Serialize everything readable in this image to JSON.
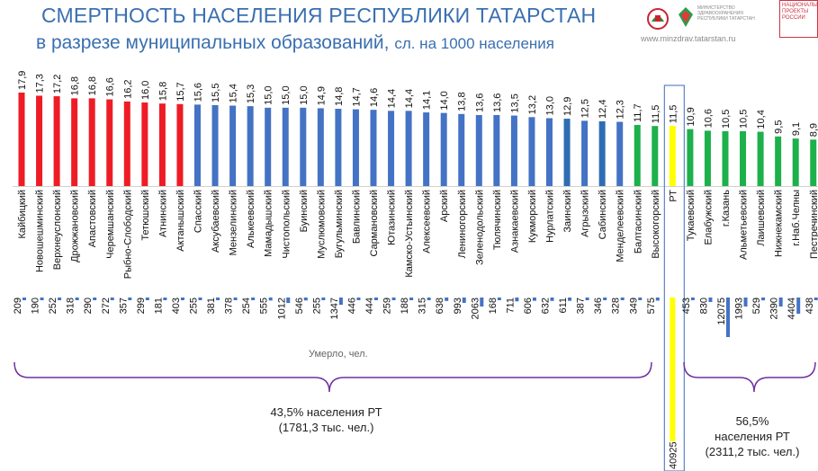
{
  "title": "СМЕРТНОСТЬ НАСЕЛЕНИЯ РЕСПУБЛИКИ ТАТАРСТАН",
  "subtitle_main": "в разрезе  муниципальных образований, ",
  "subtitle_unit": "сл. на 1000 населения",
  "website": "www.minzdrav.tatarstan.ru",
  "logos": {
    "ministry_text": "МИНИСТЕРСТВО ЗДРАВООХРАНЕНИЯ РЕСПУБЛИКИ ТАТАРСТАН",
    "project_text": "НАЦИОНАЛЬНЫЕ ПРОЕКТЫ РОССИИ"
  },
  "deaths_label": "Умерло, чел.",
  "group_left_note": [
    "43,5% населения РТ",
    "(1781,3 тыс. чел.)"
  ],
  "group_right_note": [
    "56,5%",
    "населения РТ",
    "(2311,2 тыс. чел.)"
  ],
  "colors": {
    "red": "#ee1c25",
    "blue": "#4472c4",
    "darkblue": "#2e6db4",
    "green": "#1db04b",
    "yellow": "#ffff00",
    "deaths_bar": "#4472c4",
    "deaths_rt": "#ffff00",
    "title": "#3a6fb0",
    "brace": "#7030a0"
  },
  "chart_data": {
    "type": "bar",
    "title": "СМЕРТНОСТЬ НАСЕЛЕНИЯ РЕСПУБЛИКИ ТАТАРСТАН",
    "ylabel": "сл. на 1000 населения",
    "ylim": [
      0,
      18
    ],
    "categories": [
      "Кайбицкий",
      "Новошешминский",
      "Верхнеуслонский",
      "Дрожжановский",
      "Апастовский",
      "Черемшанский",
      "Рыбно-Слободский",
      "Тетюшский",
      "Атнинский",
      "Актанышский",
      "Спасский",
      "Аксубаевский",
      "Мензелинский",
      "Алькеевский",
      "Мамадышский",
      "Чистопольский",
      "Буинский",
      "Муслюмовский",
      "Бугульминский",
      "Бавлинский",
      "Сармановский",
      "Ютазинский",
      "Камско-Устьинский",
      "Алексеевский",
      "Арский",
      "Лениногорский",
      "Зеленодольский",
      "Тюлячинский",
      "Азнакаевский",
      "Кукморский",
      "Нурлатский",
      "Заинский",
      "Агрызский",
      "Сабинский",
      "Менделеевский",
      "Балтасинский",
      "Высокогорский",
      "РТ",
      "Тукаевский",
      "Елабужский",
      "г.Казань",
      "Альметьевский",
      "Лаишевский",
      "Нижнекамский",
      "г.Наб.Челны",
      "Пестречинский"
    ],
    "series": [
      {
        "name": "Смертность, сл. на 1000 населения",
        "values": [
          "17,9",
          "17,3",
          "17,2",
          "16,8",
          "16,8",
          "16,6",
          "16,2",
          "16,0",
          "15,8",
          "15,7",
          "15,6",
          "15,5",
          "15,4",
          "15,3",
          "15,0",
          "15,0",
          "15,0",
          "14,9",
          "14,8",
          "14,7",
          "14,6",
          "14,4",
          "14,4",
          "14,1",
          "14,0",
          "13,8",
          "13,6",
          "13,6",
          "13,5",
          "13,2",
          "13,0",
          "12,9",
          "12,5",
          "12,4",
          "12,3",
          "11,7",
          "11,5",
          "11,5",
          "10,9",
          "10,6",
          "10,5",
          "10,5",
          "10,4",
          "9,5",
          "9,1",
          "8,9"
        ]
      },
      {
        "name": "Умерло, чел.",
        "values": [
          "209",
          "190",
          "252",
          "318",
          "290",
          "272",
          "357",
          "299",
          "181",
          "403",
          "255",
          "381",
          "378",
          "254",
          "555",
          "1012",
          "546",
          "255",
          "1347",
          "446",
          "444",
          "259",
          "188",
          "315",
          "638",
          "993",
          "2063",
          "168",
          "711",
          "606",
          "632",
          "611",
          "387",
          "346",
          "328",
          "349",
          "575",
          "40925",
          "453",
          "830",
          "12075",
          "1993",
          "529",
          "2390",
          "4404",
          "438"
        ]
      }
    ],
    "bar_colors": [
      "red",
      "red",
      "red",
      "red",
      "red",
      "red",
      "red",
      "red",
      "red",
      "red",
      "blue",
      "blue",
      "blue",
      "blue",
      "blue",
      "blue",
      "blue",
      "blue",
      "blue",
      "blue",
      "blue",
      "blue",
      "blue",
      "blue",
      "blue",
      "blue",
      "blue",
      "blue",
      "blue",
      "blue",
      "blue",
      "darkblue",
      "blue",
      "darkblue",
      "blue",
      "green",
      "green",
      "yellow",
      "green",
      "green",
      "green",
      "green",
      "green",
      "green",
      "green",
      "green"
    ]
  }
}
